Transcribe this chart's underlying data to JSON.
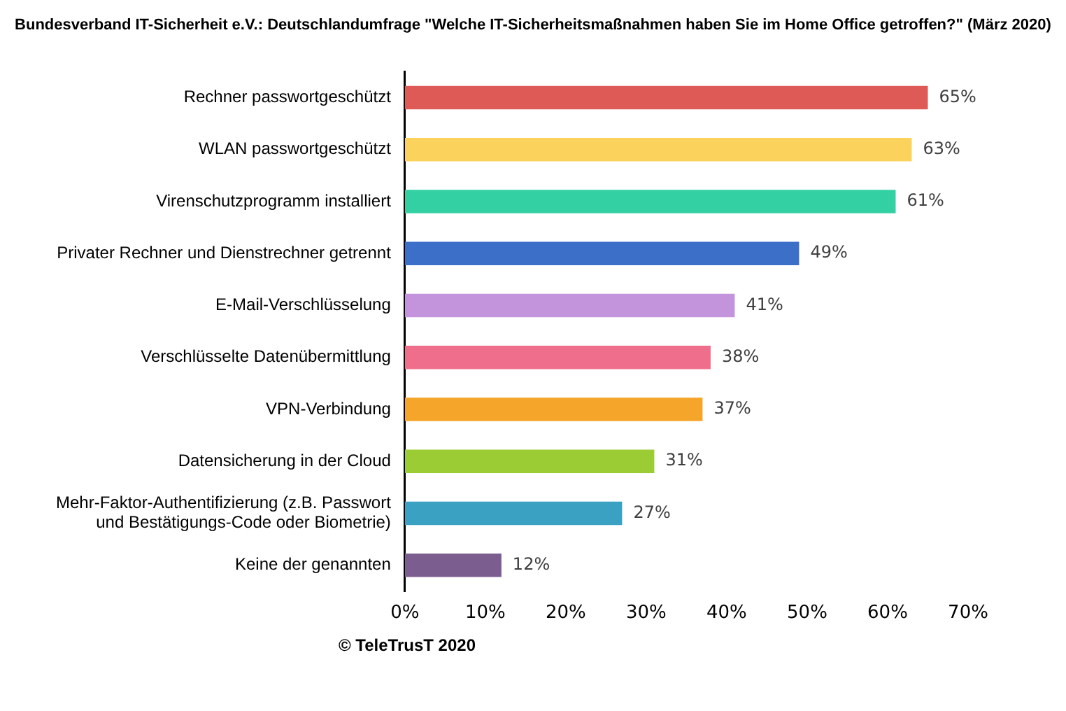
{
  "chart_data": {
    "type": "bar",
    "orientation": "horizontal",
    "title": "Bundesverband IT-Sicherheit e.V.: Deutschlandumfrage \"Welche IT-Sicherheitsmaßnahmen haben Sie im Home Office getroffen?\" (März 2020)",
    "categories": [
      "Rechner passwortgeschützt",
      "WLAN passwortgeschützt",
      "Virenschutzprogramm installiert",
      "Privater Rechner und Dienstrechner getrennt",
      "E-Mail-Verschlüsselung",
      "Verschlüsselte Datenübermittlung",
      "VPN-Verbindung",
      "Datensicherung in der Cloud",
      "Mehr-Faktor-Authentifizierung (z.B. Passwort und Bestätigungs-Code oder Biometrie)",
      "Keine der genannten"
    ],
    "values": [
      65,
      63,
      61,
      49,
      41,
      38,
      37,
      31,
      27,
      12
    ],
    "value_labels": [
      "65%",
      "63%",
      "61%",
      "49%",
      "41%",
      "38%",
      "37%",
      "31%",
      "27%",
      "12%"
    ],
    "colors": [
      "#dd5a57",
      "#fbd35c",
      "#33d0a4",
      "#3b6fc8",
      "#c394dc",
      "#ee6e8c",
      "#f5a52a",
      "#9ccc34",
      "#3aa1c2",
      "#7c5d8f"
    ],
    "xlim": [
      0,
      70
    ],
    "xticks": [
      {
        "value": 0,
        "label": "0%"
      },
      {
        "value": 10,
        "label": "10%"
      },
      {
        "value": 20,
        "label": "20%"
      },
      {
        "value": 30,
        "label": "30%"
      },
      {
        "value": 40,
        "label": "40%"
      },
      {
        "value": 50,
        "label": "50%"
      },
      {
        "value": 60,
        "label": "60%"
      },
      {
        "value": 70,
        "label": "70%"
      }
    ],
    "grid": false,
    "legend": false,
    "annotations": [
      "© TeleTrusT 2020"
    ]
  }
}
